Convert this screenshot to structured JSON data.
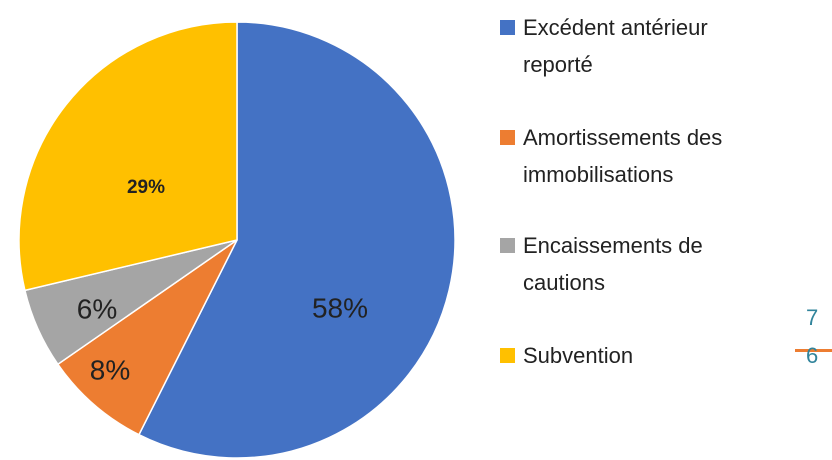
{
  "chart_data": {
    "type": "pie",
    "categories": [
      "Excédent antérieur reporté",
      "Amortissements des immobilisations",
      "Encaissements de cautions",
      "Subvention"
    ],
    "values": [
      58,
      8,
      6,
      29
    ],
    "value_labels": [
      "58%",
      "8%",
      "6%",
      "29%"
    ],
    "colors": [
      "#4472C4",
      "#ED7D31",
      "#A5A5A5",
      "#FFC000"
    ],
    "legend": "right",
    "annotations": [
      "7",
      "6"
    ]
  }
}
